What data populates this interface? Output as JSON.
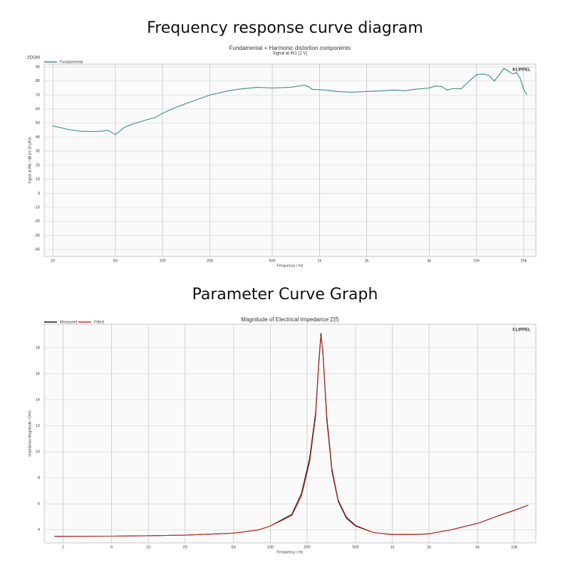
{
  "headings": [
    "Frequency response curve diagram",
    "Parameter Curve Graph"
  ],
  "chart_data": [
    {
      "type": "line",
      "title": "Fundamental + Harmonic distortion components",
      "subtitle": "Signal at IN1 (1 V)",
      "x_label": "Frequency / Hz",
      "y_label": "Signal at IN1 / dB (re 20 µPa)",
      "zoom_label": "ZOOM",
      "logo": "KLIPPEL",
      "xscale": "log",
      "grid": true,
      "legend": "top-left",
      "xlim": [
        17.6,
        23900
      ],
      "ylim": [
        -45,
        92
      ],
      "xticks": [
        20,
        50,
        100,
        200,
        500,
        {
          "value": 1000,
          "label": "1k"
        },
        {
          "value": 2000,
          "label": "2k"
        },
        {
          "value": 5000,
          "label": "5k"
        },
        {
          "value": 10000,
          "label": "10k"
        },
        {
          "value": 20000,
          "label": "20k"
        }
      ],
      "yticks": [
        90,
        80,
        70,
        60,
        50,
        40,
        30,
        20,
        10,
        0,
        -10,
        -20,
        -30,
        -40
      ],
      "x": [
        20,
        25,
        30,
        35,
        40,
        45,
        48,
        50,
        53,
        57,
        65,
        80,
        90,
        100,
        120,
        150,
        200,
        250,
        300,
        400,
        500,
        650,
        800,
        850,
        900,
        1100,
        1300,
        1600,
        2000,
        2500,
        3000,
        3500,
        4000,
        5000,
        5500,
        6000,
        6500,
        7000,
        8000,
        9000,
        10000,
        11000,
        12000,
        13000,
        14000,
        15000,
        16000,
        17000,
        18000,
        19000,
        20000,
        21000
      ],
      "series": [
        {
          "name": "Fundamental",
          "color": "#3f8a8c",
          "values": [
            48,
            45.5,
            44.2,
            44,
            44.2,
            44.8,
            43,
            41.8,
            44,
            47,
            49.5,
            52.5,
            54,
            57,
            61,
            65,
            70,
            72.5,
            74,
            75.5,
            75,
            75.5,
            77,
            76,
            74,
            73.5,
            72.5,
            72,
            72.5,
            73,
            73.5,
            73,
            74,
            75,
            76.5,
            76,
            73.5,
            74.5,
            74.5,
            80,
            84.5,
            85,
            84,
            80,
            84.5,
            89,
            87,
            85,
            86,
            82,
            74,
            70
          ]
        }
      ]
    },
    {
      "type": "line",
      "title": "Magnitude of Electrical Impedance Z(f)",
      "x_label": "Frequency / Hz",
      "y_label": "Impedance Magnitude / Ohm",
      "logo": "KLIPPEL",
      "xscale": "log",
      "grid": true,
      "legend": "top-left",
      "xlim": [
        1.4,
        15000
      ],
      "ylim": [
        3,
        19.8
      ],
      "xticks": [
        2,
        5,
        10,
        20,
        50,
        100,
        200,
        500,
        {
          "value": 1000,
          "label": "1k"
        },
        {
          "value": 2000,
          "label": "2k"
        },
        {
          "value": 5000,
          "label": "5k"
        },
        {
          "value": 10000,
          "label": "10k"
        }
      ],
      "yticks": [
        4,
        6,
        8,
        10,
        12,
        14,
        16,
        18
      ],
      "x": [
        1.7,
        5,
        10,
        20,
        50,
        80,
        100,
        150,
        180,
        210,
        235,
        250,
        260,
        270,
        290,
        320,
        360,
        420,
        500,
        700,
        1000,
        1500,
        2000,
        3000,
        5000,
        8000,
        10000,
        13000
      ],
      "series": [
        {
          "name": "Measured",
          "color": "#111111",
          "values": [
            3.5,
            3.52,
            3.55,
            3.6,
            3.75,
            4,
            4.3,
            5.2,
            6.8,
            9.5,
            13,
            17,
            19.1,
            17.5,
            12.5,
            8.5,
            6.2,
            4.9,
            4.3,
            3.8,
            3.65,
            3.65,
            3.7,
            4,
            4.5,
            5.2,
            5.5,
            5.9
          ]
        },
        {
          "name": "Fitted",
          "color": "#c0302a",
          "values": [
            3.5,
            3.52,
            3.55,
            3.6,
            3.75,
            4,
            4.3,
            5.1,
            6.6,
            9.2,
            12.7,
            16.8,
            18.9,
            17.7,
            12.8,
            8.7,
            6.3,
            5,
            4.35,
            3.8,
            3.63,
            3.63,
            3.7,
            4,
            4.5,
            5.2,
            5.5,
            5.9
          ]
        }
      ]
    }
  ]
}
